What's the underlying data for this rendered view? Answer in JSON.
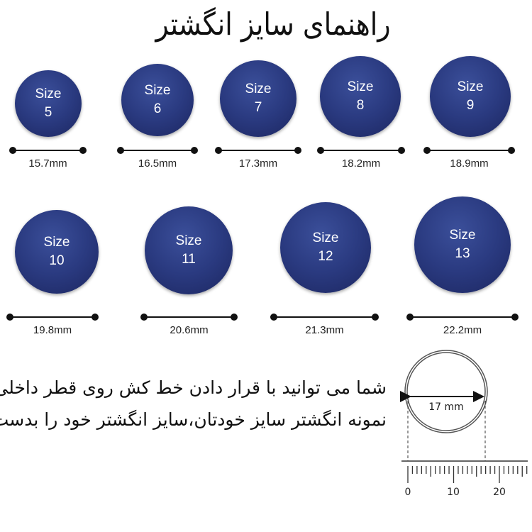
{
  "title": "راهنمای سایز انگشتر",
  "size_word": "Size",
  "rings": [
    {
      "size": "5",
      "diameter": "15.7mm"
    },
    {
      "size": "6",
      "diameter": "16.5mm"
    },
    {
      "size": "7",
      "diameter": "17.3mm"
    },
    {
      "size": "8",
      "diameter": "18.2mm"
    },
    {
      "size": "9",
      "diameter": "18.9mm"
    },
    {
      "size": "10",
      "diameter": "19.8mm"
    },
    {
      "size": "11",
      "diameter": "20.6mm"
    },
    {
      "size": "12",
      "diameter": "21.3mm"
    },
    {
      "size": "13",
      "diameter": "22.2mm"
    }
  ],
  "instructions": {
    "line1": "شما می توانید با قرار دادن خط کش روی قطر داخلی",
    "line2": "نمونه انگشتر سایز خودتان،سایز انگشتر خود را بدست بیاورید"
  },
  "example": {
    "diameter_label": "17 mm",
    "ruler_labels": [
      "0",
      "10",
      "20"
    ]
  },
  "colors": {
    "ring_fill": "#2a3a80",
    "text": "#111111"
  }
}
